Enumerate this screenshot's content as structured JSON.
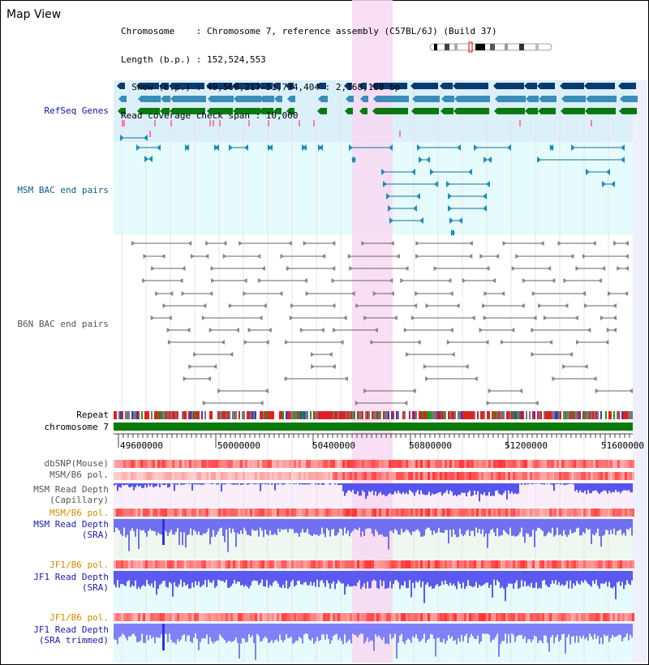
{
  "window": {
    "title": "Map View"
  },
  "info": {
    "lines": [
      "Chromosome    : Chromosome 7, reference assembly (C57BL/6J) (Build 37)",
      "Length (b.p.) : 152,524,553",
      "  Show (b.p.) : 49,566,217-51,734,404 : 2,168,188 bp",
      "Read coverage check span : 10,000"
    ]
  },
  "tracks": {
    "refseq": "RefSeq Genes",
    "msm_bac": "MSM BAC end pairs",
    "b6n_bac": "B6N BAC end pairs",
    "repeat": "Repeat",
    "chromosome": "chromosome 7",
    "dbsnp": "dbSNP(Mouse)",
    "msm_b6_pol_1": "MSM/B6 pol.",
    "msm_read_depth_cap_1": "MSM Read Depth",
    "msm_read_depth_cap_2": "(Capillary)",
    "msm_b6_pol_2": "MSM/B6 pol.",
    "msm_read_depth_sra_1": "MSM Read Depth",
    "msm_read_depth_sra_2": "(SRA)",
    "jf1_b6_pol_1": "JF1/B6 pol.",
    "jf1_read_depth_sra_1": "JF1 Read Depth",
    "jf1_read_depth_sra_2": "(SRA)",
    "jf1_b6_pol_2": "JF1/B6 pol.",
    "jf1_read_depth_trim_1": "JF1 Read Depth",
    "jf1_read_depth_trim_2": "(SRA trimmed)"
  },
  "axis": {
    "ticks": [
      "49600000",
      "50000000",
      "50400000",
      "50800000",
      "51200000",
      "51600000"
    ]
  },
  "colors": {
    "highlight": "#f8d8f2",
    "refseq_bg": "#dcf0fa",
    "bac_bg": "#e6fbfb",
    "gene_dark": "#0b3a6e",
    "gene_mid": "#3a8db8",
    "gene_green": "#0a7a10",
    "chromosome": "#0a7a0a",
    "depth_blue": "#2020ee",
    "depth_lav": "#8080f8"
  }
}
